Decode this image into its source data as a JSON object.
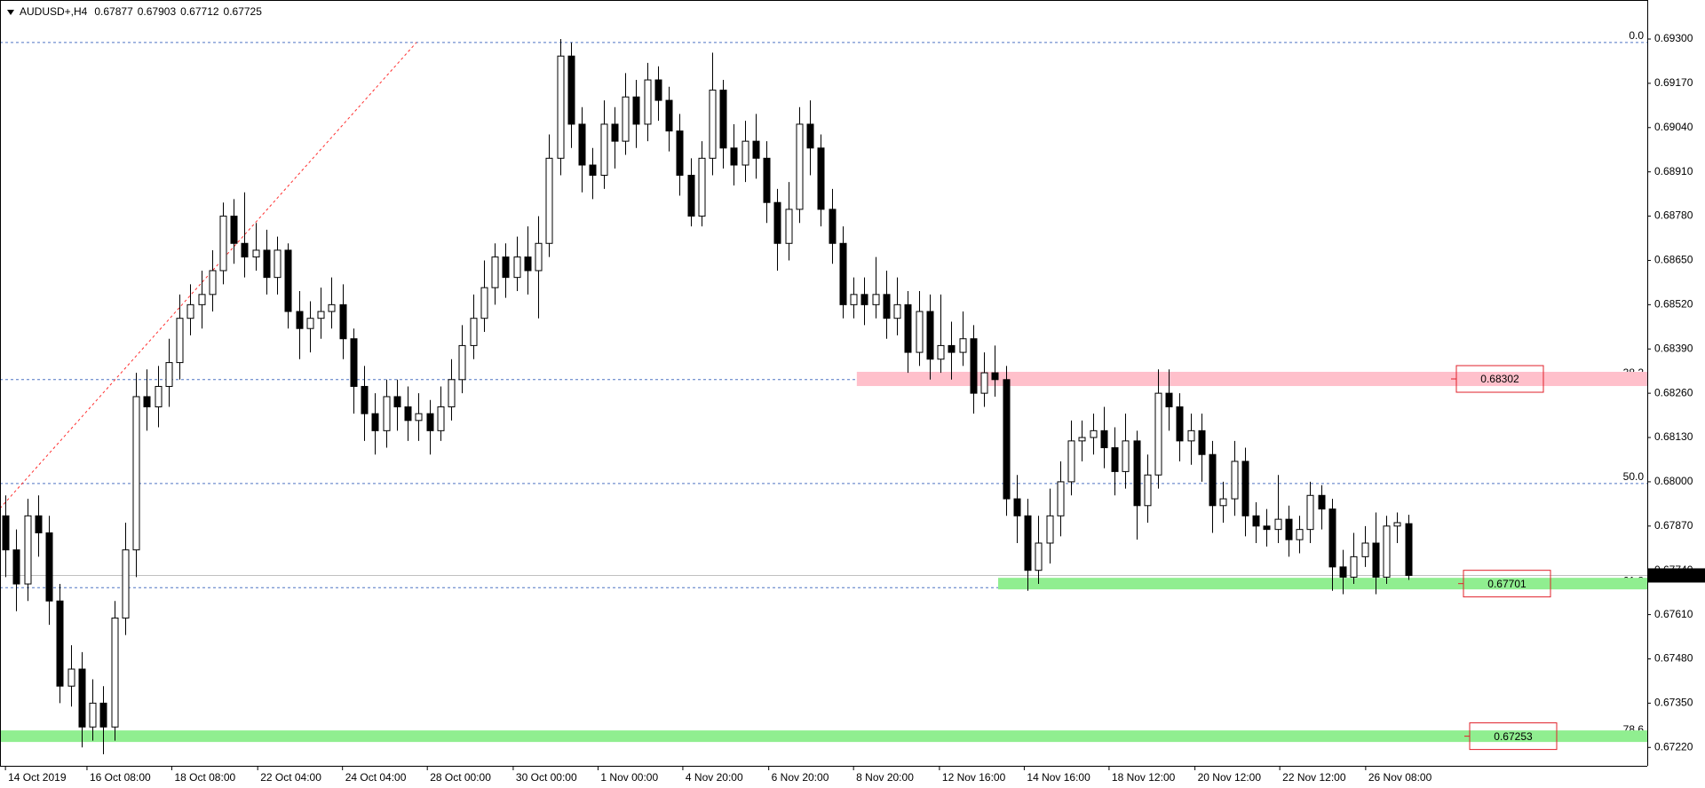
{
  "chart_data": {
    "type": "candlestick",
    "symbol": "AUDUSD+,H4",
    "xlim": [
      -0.5,
      151
    ],
    "ylim": [
      0.67166,
      0.69399
    ],
    "yticks": [
      {
        "value": 0.693,
        "label": "0.69300"
      },
      {
        "value": 0.6917,
        "label": "0.69170"
      },
      {
        "value": 0.6904,
        "label": "0.69040"
      },
      {
        "value": 0.6891,
        "label": "0.68910"
      },
      {
        "value": 0.6878,
        "label": "0.68780"
      },
      {
        "value": 0.6865,
        "label": "0.68650"
      },
      {
        "value": 0.6852,
        "label": "0.68520"
      },
      {
        "value": 0.6839,
        "label": "0.68390"
      },
      {
        "value": 0.6826,
        "label": "0.68260"
      },
      {
        "value": 0.6813,
        "label": "0.68130"
      },
      {
        "value": 0.68,
        "label": "0.68000"
      },
      {
        "value": 0.6787,
        "label": "0.67870"
      },
      {
        "value": 0.6774,
        "label": "0.67740"
      },
      {
        "value": 0.6761,
        "label": "0.67610"
      },
      {
        "value": 0.6748,
        "label": "0.67480"
      },
      {
        "value": 0.6735,
        "label": "0.67350"
      },
      {
        "value": 0.6722,
        "label": "0.67220"
      }
    ],
    "xticks": [
      {
        "value": 0,
        "label": "14 Oct 2019"
      },
      {
        "value": 7.5,
        "label": "16 Oct 08:00"
      },
      {
        "value": 15.3,
        "label": "18 Oct 08:00"
      },
      {
        "value": 23.2,
        "label": "22 Oct 04:00"
      },
      {
        "value": 31,
        "label": "24 Oct 04:00"
      },
      {
        "value": 38.8,
        "label": "28 Oct 00:00"
      },
      {
        "value": 46.7,
        "label": "30 Oct 00:00"
      },
      {
        "value": 54.5,
        "label": "1 Nov 00:00"
      },
      {
        "value": 62.3,
        "label": "4 Nov 20:00"
      },
      {
        "value": 70.2,
        "label": "6 Nov 20:00"
      },
      {
        "value": 78,
        "label": "8 Nov 20:00"
      },
      {
        "value": 85.9,
        "label": "12 Nov 16:00"
      },
      {
        "value": 93.7,
        "label": "14 Nov 16:00"
      },
      {
        "value": 101.5,
        "label": "18 Nov 12:00"
      },
      {
        "value": 109.4,
        "label": "20 Nov 12:00"
      },
      {
        "value": 117.2,
        "label": "22 Nov 12:00"
      },
      {
        "value": 125.1,
        "label": "26 Nov 08:00"
      }
    ],
    "fib_levels": [
      {
        "price": 0.6929,
        "label": "0.0"
      },
      {
        "price": 0.683,
        "label": "38.2"
      },
      {
        "price": 0.67995,
        "label": "50.0"
      },
      {
        "price": 0.67689,
        "label": "61.8"
      },
      {
        "price": 0.67253,
        "label": "78.6"
      }
    ],
    "zones": [
      {
        "price": 0.68302,
        "start": 78.3,
        "color": "#ffc0cb"
      },
      {
        "price": 0.67701,
        "start": 91.3,
        "color": "#90ee90"
      },
      {
        "price": 0.67253,
        "start": -0.5,
        "color": "#90ee90"
      }
    ],
    "trendline": {
      "x": [
        -0.5,
        37.8
      ],
      "y": [
        0.67922,
        0.6929
      ]
    },
    "ohlc": [
      [
        0.679,
        0.6796,
        0.6772,
        0.678
      ],
      [
        0.678,
        0.6786,
        0.6762,
        0.677
      ],
      [
        0.677,
        0.6795,
        0.6765,
        0.679
      ],
      [
        0.679,
        0.6796,
        0.6778,
        0.6785
      ],
      [
        0.6785,
        0.679,
        0.6758,
        0.6765
      ],
      [
        0.6765,
        0.677,
        0.6735,
        0.674
      ],
      [
        0.674,
        0.6752,
        0.6734,
        0.6745
      ],
      [
        0.6745,
        0.675,
        0.6722,
        0.6728
      ],
      [
        0.6728,
        0.6742,
        0.6724,
        0.6735
      ],
      [
        0.6735,
        0.674,
        0.672,
        0.6728
      ],
      [
        0.6728,
        0.6765,
        0.6724,
        0.676
      ],
      [
        0.676,
        0.6788,
        0.6755,
        0.678
      ],
      [
        0.678,
        0.6832,
        0.6772,
        0.6825
      ],
      [
        0.6825,
        0.6833,
        0.6815,
        0.6822
      ],
      [
        0.6822,
        0.6834,
        0.6816,
        0.6828
      ],
      [
        0.6828,
        0.6842,
        0.6822,
        0.6835
      ],
      [
        0.6835,
        0.6855,
        0.683,
        0.6848
      ],
      [
        0.6848,
        0.6858,
        0.6843,
        0.6852
      ],
      [
        0.6852,
        0.6862,
        0.6845,
        0.6855
      ],
      [
        0.6855,
        0.6868,
        0.685,
        0.6862
      ],
      [
        0.6862,
        0.6882,
        0.6858,
        0.6878
      ],
      [
        0.6878,
        0.6883,
        0.6864,
        0.687
      ],
      [
        0.687,
        0.6885,
        0.686,
        0.6866
      ],
      [
        0.6866,
        0.6876,
        0.6862,
        0.6868
      ],
      [
        0.6868,
        0.6874,
        0.6855,
        0.686
      ],
      [
        0.686,
        0.6872,
        0.6855,
        0.6868
      ],
      [
        0.6868,
        0.687,
        0.6845,
        0.685
      ],
      [
        0.685,
        0.6856,
        0.6836,
        0.6845
      ],
      [
        0.6845,
        0.6853,
        0.6838,
        0.6848
      ],
      [
        0.6848,
        0.6857,
        0.6842,
        0.685
      ],
      [
        0.685,
        0.686,
        0.6845,
        0.6852
      ],
      [
        0.6852,
        0.6858,
        0.6836,
        0.6842
      ],
      [
        0.6842,
        0.6845,
        0.682,
        0.6828
      ],
      [
        0.6828,
        0.6834,
        0.6812,
        0.682
      ],
      [
        0.682,
        0.6826,
        0.6808,
        0.6815
      ],
      [
        0.6815,
        0.683,
        0.681,
        0.6825
      ],
      [
        0.6825,
        0.683,
        0.6815,
        0.6822
      ],
      [
        0.6822,
        0.6828,
        0.6812,
        0.6818
      ],
      [
        0.6818,
        0.6826,
        0.6812,
        0.682
      ],
      [
        0.682,
        0.6824,
        0.6808,
        0.6815
      ],
      [
        0.6815,
        0.6828,
        0.6812,
        0.6822
      ],
      [
        0.6822,
        0.6836,
        0.6818,
        0.683
      ],
      [
        0.683,
        0.6846,
        0.6826,
        0.684
      ],
      [
        0.684,
        0.6855,
        0.6836,
        0.6848
      ],
      [
        0.6848,
        0.6865,
        0.6844,
        0.6857
      ],
      [
        0.6857,
        0.687,
        0.6852,
        0.6866
      ],
      [
        0.6866,
        0.687,
        0.6854,
        0.686
      ],
      [
        0.686,
        0.6872,
        0.6856,
        0.6866
      ],
      [
        0.6866,
        0.6875,
        0.6855,
        0.6862
      ],
      [
        0.6862,
        0.6878,
        0.6848,
        0.687
      ],
      [
        0.687,
        0.6902,
        0.6866,
        0.6895
      ],
      [
        0.6895,
        0.693,
        0.689,
        0.6925
      ],
      [
        0.6925,
        0.6929,
        0.6898,
        0.6905
      ],
      [
        0.6905,
        0.691,
        0.6885,
        0.6893
      ],
      [
        0.6893,
        0.6898,
        0.6883,
        0.689
      ],
      [
        0.689,
        0.6912,
        0.6886,
        0.6905
      ],
      [
        0.6905,
        0.691,
        0.6892,
        0.69
      ],
      [
        0.69,
        0.692,
        0.6896,
        0.6913
      ],
      [
        0.6913,
        0.6918,
        0.6898,
        0.6905
      ],
      [
        0.6905,
        0.6923,
        0.69,
        0.6918
      ],
      [
        0.6918,
        0.6922,
        0.6906,
        0.6912
      ],
      [
        0.6912,
        0.6916,
        0.6897,
        0.6903
      ],
      [
        0.6903,
        0.6908,
        0.6884,
        0.689
      ],
      [
        0.689,
        0.6895,
        0.6875,
        0.6878
      ],
      [
        0.6878,
        0.69,
        0.6875,
        0.6895
      ],
      [
        0.6895,
        0.6926,
        0.689,
        0.6915
      ],
      [
        0.6915,
        0.6918,
        0.6892,
        0.6898
      ],
      [
        0.6898,
        0.6905,
        0.6887,
        0.6893
      ],
      [
        0.6893,
        0.6906,
        0.6888,
        0.69
      ],
      [
        0.69,
        0.6908,
        0.6889,
        0.6895
      ],
      [
        0.6895,
        0.69,
        0.6876,
        0.6882
      ],
      [
        0.6882,
        0.6886,
        0.6862,
        0.687
      ],
      [
        0.687,
        0.6888,
        0.6865,
        0.688
      ],
      [
        0.688,
        0.691,
        0.6876,
        0.6905
      ],
      [
        0.6905,
        0.6912,
        0.689,
        0.6898
      ],
      [
        0.6898,
        0.6902,
        0.6875,
        0.688
      ],
      [
        0.688,
        0.6886,
        0.6864,
        0.687
      ],
      [
        0.687,
        0.6875,
        0.6848,
        0.6852
      ],
      [
        0.6852,
        0.686,
        0.6848,
        0.6855
      ],
      [
        0.6855,
        0.686,
        0.6846,
        0.6852
      ],
      [
        0.6852,
        0.6866,
        0.6848,
        0.6855
      ],
      [
        0.6855,
        0.6862,
        0.6842,
        0.6848
      ],
      [
        0.6848,
        0.686,
        0.6843,
        0.6852
      ],
      [
        0.6852,
        0.6856,
        0.6832,
        0.6838
      ],
      [
        0.6838,
        0.6856,
        0.6834,
        0.685
      ],
      [
        0.685,
        0.6855,
        0.683,
        0.6836
      ],
      [
        0.6836,
        0.6855,
        0.6832,
        0.684
      ],
      [
        0.684,
        0.6847,
        0.683,
        0.6838
      ],
      [
        0.6838,
        0.685,
        0.6834,
        0.6842
      ],
      [
        0.6842,
        0.6846,
        0.682,
        0.6826
      ],
      [
        0.6826,
        0.6838,
        0.6822,
        0.6832
      ],
      [
        0.6832,
        0.684,
        0.6825,
        0.683
      ],
      [
        0.683,
        0.6834,
        0.679,
        0.6795
      ],
      [
        0.6795,
        0.6802,
        0.6782,
        0.679
      ],
      [
        0.679,
        0.6795,
        0.6768,
        0.6774
      ],
      [
        0.6774,
        0.679,
        0.677,
        0.6782
      ],
      [
        0.6782,
        0.6798,
        0.6776,
        0.679
      ],
      [
        0.679,
        0.6806,
        0.6784,
        0.68
      ],
      [
        0.68,
        0.6818,
        0.6796,
        0.6812
      ],
      [
        0.6812,
        0.6818,
        0.6806,
        0.6813
      ],
      [
        0.6813,
        0.682,
        0.6808,
        0.6815
      ],
      [
        0.6815,
        0.6822,
        0.6804,
        0.681
      ],
      [
        0.681,
        0.6816,
        0.6796,
        0.6803
      ],
      [
        0.6803,
        0.682,
        0.6798,
        0.6812
      ],
      [
        0.6812,
        0.6815,
        0.6783,
        0.6793
      ],
      [
        0.6793,
        0.6808,
        0.6788,
        0.6802
      ],
      [
        0.6802,
        0.6833,
        0.6798,
        0.6826
      ],
      [
        0.6826,
        0.6833,
        0.6815,
        0.6822
      ],
      [
        0.6822,
        0.6826,
        0.6806,
        0.6812
      ],
      [
        0.6812,
        0.682,
        0.6805,
        0.6815
      ],
      [
        0.6815,
        0.682,
        0.68,
        0.6808
      ],
      [
        0.6808,
        0.6812,
        0.6785,
        0.6793
      ],
      [
        0.6793,
        0.68,
        0.6788,
        0.6795
      ],
      [
        0.6795,
        0.6812,
        0.679,
        0.6806
      ],
      [
        0.6806,
        0.681,
        0.6784,
        0.679
      ],
      [
        0.679,
        0.6794,
        0.6782,
        0.6787
      ],
      [
        0.6787,
        0.6792,
        0.6781,
        0.6786
      ],
      [
        0.6786,
        0.6802,
        0.6782,
        0.6789
      ],
      [
        0.6789,
        0.6793,
        0.6778,
        0.6783
      ],
      [
        0.6783,
        0.679,
        0.6779,
        0.6786
      ],
      [
        0.6786,
        0.68,
        0.6782,
        0.6796
      ],
      [
        0.6796,
        0.6799,
        0.6786,
        0.6792
      ],
      [
        0.6792,
        0.6795,
        0.6768,
        0.6775
      ],
      [
        0.6775,
        0.678,
        0.6767,
        0.6772
      ],
      [
        0.6772,
        0.6785,
        0.677,
        0.6778
      ],
      [
        0.6778,
        0.6787,
        0.6775,
        0.6782
      ],
      [
        0.6782,
        0.6791,
        0.6767,
        0.6772
      ],
      [
        0.6772,
        0.679,
        0.677,
        0.6787
      ],
      [
        0.6787,
        0.6791,
        0.6782,
        0.6788
      ],
      [
        0.67877,
        0.67903,
        0.67712,
        0.67725
      ]
    ]
  }
}
